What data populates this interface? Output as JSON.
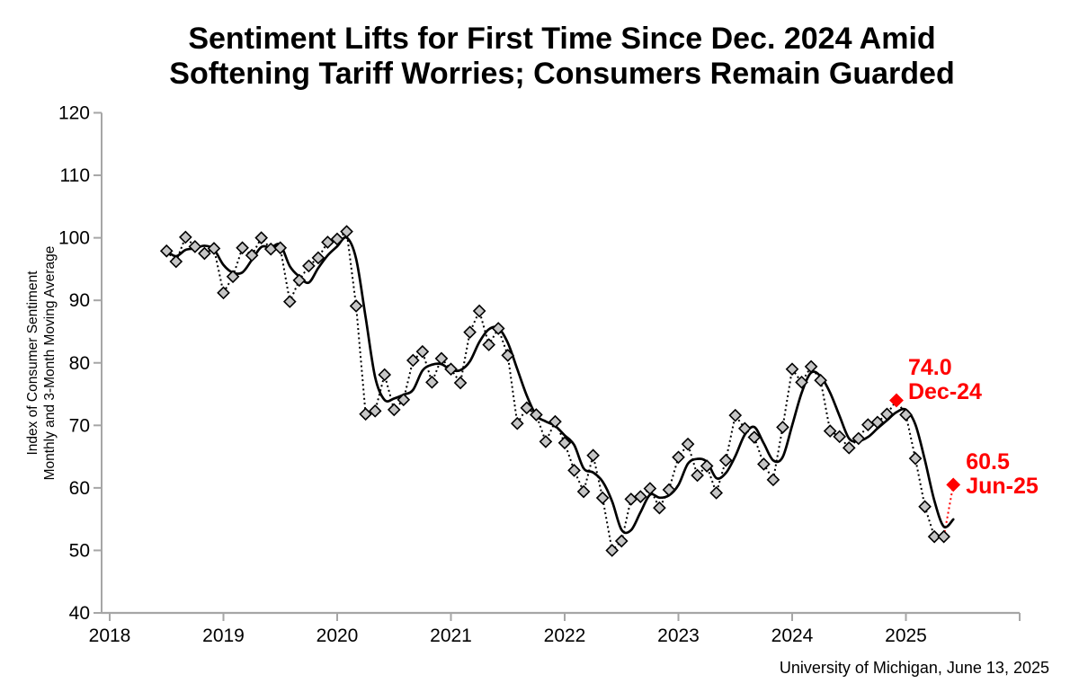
{
  "title": {
    "line1": "Sentiment Lifts for First Time Since Dec. 2024 Amid",
    "line2": "Softening Tariff Worries; Consumers Remain Guarded"
  },
  "source_note": "University of Michigan, June 13, 2025",
  "y_axis": {
    "title_line1": "Index of Consumer Sentiment",
    "title_line2": "Monthly and 3-Month Moving Average",
    "ticks": [
      40,
      50,
      60,
      70,
      80,
      90,
      100,
      110,
      120
    ]
  },
  "x_axis": {
    "ticks": [
      "2018",
      "2019",
      "2020",
      "2021",
      "2022",
      "2023",
      "2024",
      "2025"
    ]
  },
  "colors": {
    "accent_red": "#ff0000",
    "axis_gray": "#a6a6a6",
    "marker_fill": "#c6c6c6",
    "marker_stroke": "#000000",
    "line_black": "#000000",
    "background": "#ffffff"
  },
  "chart_data": {
    "type": "line",
    "title": "Sentiment Lifts for First Time Since Dec. 2024 Amid Softening Tariff Worries; Consumers Remain Guarded",
    "ylabel": "Index of Consumer Sentiment, Monthly and 3-Month Moving Average",
    "ylim": [
      40,
      120
    ],
    "x_axis_range": [
      "Jan-2018",
      "Jan-2026"
    ],
    "series_start": "Jul-2018",
    "frequency": "monthly",
    "grid": false,
    "legend": false,
    "series": [
      {
        "name": "Monthly",
        "marker": "diamond",
        "line_style": "dotted",
        "values": [
          97.9,
          96.2,
          100.1,
          98.6,
          97.5,
          98.3,
          91.2,
          93.8,
          98.4,
          97.2,
          100.0,
          98.2,
          98.4,
          89.8,
          93.2,
          95.5,
          96.8,
          99.3,
          99.8,
          101.0,
          89.1,
          71.8,
          72.3,
          78.1,
          72.5,
          74.1,
          80.4,
          81.8,
          76.9,
          80.7,
          79.0,
          76.8,
          84.9,
          88.3,
          82.9,
          85.5,
          81.2,
          70.3,
          72.8,
          71.7,
          67.4,
          70.6,
          67.2,
          62.8,
          59.4,
          65.2,
          58.4,
          50.0,
          51.5,
          58.2,
          58.6,
          59.9,
          56.8,
          59.7,
          64.9,
          67.0,
          62.0,
          63.5,
          59.2,
          64.4,
          71.6,
          69.5,
          68.1,
          63.8,
          61.3,
          69.7,
          79.0,
          76.9,
          79.4,
          77.2,
          69.1,
          68.2,
          66.4,
          67.9,
          70.1,
          70.5,
          71.8,
          74.0,
          71.7,
          64.7,
          57.0,
          52.2,
          52.2,
          60.5
        ]
      },
      {
        "name": "3-Month Moving Average",
        "marker": "none",
        "line_style": "solid",
        "derived_from": "Monthly",
        "window": 3
      }
    ],
    "annotations": [
      {
        "value_label": "74.0",
        "date_label": "Dec-24",
        "value": 74.0,
        "series_index": 77,
        "color": "#ff0000"
      },
      {
        "value_label": "60.5",
        "date_label": "Jun-25",
        "value": 60.5,
        "series_index": 83,
        "color": "#ff0000"
      }
    ]
  }
}
